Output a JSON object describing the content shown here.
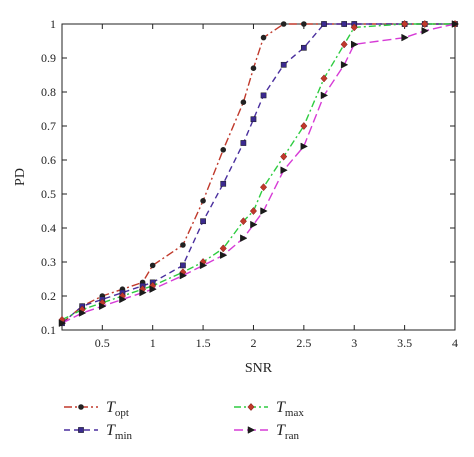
{
  "chart_data": {
    "type": "line",
    "xlabel": "SNR",
    "ylabel": "PD",
    "xlim": [
      0.1,
      4
    ],
    "ylim": [
      0.1,
      1
    ],
    "xticks": [
      0.5,
      1,
      1.5,
      2,
      2.5,
      3,
      3.5,
      4
    ],
    "xtick_labels": [
      "0.5",
      "1",
      "1.5",
      "2",
      "2.5",
      "3",
      "3.5",
      "4"
    ],
    "yticks": [
      0.1,
      0.2,
      0.3,
      0.4,
      0.5,
      0.6,
      0.7,
      0.8,
      0.9,
      1
    ],
    "ytick_labels": [
      "0.1",
      "0.2",
      "0.3",
      "0.4",
      "0.5",
      "0.6",
      "0.7",
      "0.8",
      "0.9",
      "1"
    ],
    "grid": false,
    "legend_position": "bottom",
    "series": [
      {
        "name": "T",
        "sub": "opt",
        "color": "#c0392b",
        "marker": "dot",
        "dash": "8,3,2,3",
        "x": [
          0.1,
          0.3,
          0.5,
          0.7,
          0.9,
          1.0,
          1.3,
          1.5,
          1.7,
          1.9,
          2.0,
          2.1,
          2.3,
          2.5,
          2.7,
          2.9,
          3.0,
          3.5,
          3.7,
          4.0
        ],
        "y": [
          0.12,
          0.17,
          0.2,
          0.22,
          0.24,
          0.29,
          0.35,
          0.48,
          0.63,
          0.77,
          0.87,
          0.96,
          1.0,
          1.0,
          1.0,
          1.0,
          1.0,
          1.0,
          1.0,
          1.0
        ]
      },
      {
        "name": "T",
        "sub": "min",
        "color": "#4a2f9e",
        "marker": "square",
        "dash": "6,4",
        "x": [
          0.1,
          0.3,
          0.5,
          0.7,
          0.9,
          1.0,
          1.3,
          1.5,
          1.7,
          1.9,
          2.0,
          2.1,
          2.3,
          2.5,
          2.7,
          2.9,
          3.0,
          3.5,
          3.7,
          4.0
        ],
        "y": [
          0.12,
          0.17,
          0.19,
          0.21,
          0.23,
          0.24,
          0.29,
          0.42,
          0.53,
          0.65,
          0.72,
          0.79,
          0.88,
          0.93,
          1.0,
          1.0,
          1.0,
          1.0,
          1.0,
          1.0
        ]
      },
      {
        "name": "T",
        "sub": "max",
        "color": "#2ecc40",
        "marker": "diamond",
        "dash": "7,3,2,3",
        "x": [
          0.1,
          0.3,
          0.5,
          0.7,
          0.9,
          1.0,
          1.3,
          1.5,
          1.7,
          1.9,
          2.0,
          2.1,
          2.3,
          2.5,
          2.7,
          2.9,
          3.0,
          3.5,
          3.7,
          4.0
        ],
        "y": [
          0.13,
          0.16,
          0.18,
          0.2,
          0.22,
          0.23,
          0.27,
          0.3,
          0.34,
          0.42,
          0.45,
          0.52,
          0.61,
          0.7,
          0.84,
          0.94,
          0.99,
          1.0,
          1.0,
          1.0
        ]
      },
      {
        "name": "T",
        "sub": "ran",
        "color": "#d63bd6",
        "marker": "triangle",
        "dash": "9,4",
        "x": [
          0.1,
          0.3,
          0.5,
          0.7,
          0.9,
          1.0,
          1.3,
          1.5,
          1.7,
          1.9,
          2.0,
          2.1,
          2.3,
          2.5,
          2.7,
          2.9,
          3.0,
          3.5,
          3.7,
          4.0
        ],
        "y": [
          0.12,
          0.15,
          0.17,
          0.19,
          0.21,
          0.22,
          0.26,
          0.29,
          0.32,
          0.37,
          0.41,
          0.45,
          0.57,
          0.64,
          0.79,
          0.88,
          0.94,
          0.96,
          0.98,
          1.0
        ]
      }
    ]
  }
}
